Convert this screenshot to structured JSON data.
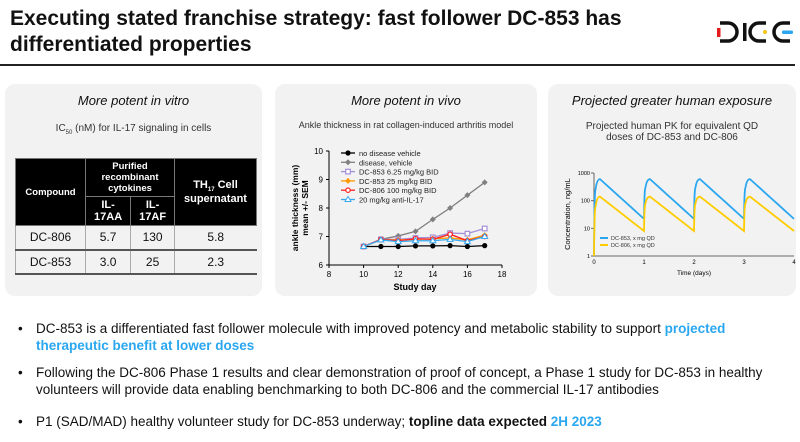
{
  "title": "Executing stated franchise strategy: fast follower DC-853 has differentiated properties",
  "logo": {
    "text": "DICE",
    "colors": [
      "#e41b1b",
      "#f5c518",
      "#2aa7f0"
    ]
  },
  "panels": [
    {
      "heading": "More potent in vitro",
      "subtitle_pre": "IC",
      "subtitle_sub": "50",
      "subtitle_post": " (nM) for IL-17 signaling in cells",
      "table": {
        "h_compound": "Compound",
        "h_group": "Purified recombinant cytokines",
        "h_aa": "IL-17AA",
        "h_af": "IL-17AF",
        "h_th_pre": "TH",
        "h_th_sub": "17",
        "h_th_post": " Cell supernatant",
        "rows": [
          [
            "DC-806",
            "5.7",
            "130",
            "5.8"
          ],
          [
            "DC-853",
            "3.0",
            "25",
            "2.3"
          ]
        ]
      }
    },
    {
      "heading": "More potent in vivo",
      "subtitle": "Ankle thickness in rat collagen-induced arthritis model"
    },
    {
      "heading": "Projected greater human exposure",
      "subtitle": "Projected human PK for equivalent QD doses of DC-853 and DC-806"
    }
  ],
  "chart_data": [
    {
      "type": "line",
      "xlabel": "Study day",
      "ylabel": "ankle thickness (mm) mean +/- SEM",
      "xlim": [
        8,
        18
      ],
      "ylim": [
        6,
        10
      ],
      "xticks": [
        "8",
        "10",
        "12",
        "14",
        "16",
        "18"
      ],
      "yticks": [
        "6",
        "7",
        "8",
        "9",
        "10"
      ],
      "legend": "top-left",
      "x": [
        10,
        11,
        12,
        13,
        14,
        15,
        16,
        17
      ],
      "series": [
        {
          "name": "no disease vehicle",
          "color": "#000000",
          "marker": "circle",
          "values": [
            6.65,
            6.65,
            6.65,
            6.67,
            6.67,
            6.68,
            6.65,
            6.68
          ]
        },
        {
          "name": "disease, vehicle",
          "color": "#808080",
          "marker": "diamond",
          "values": [
            6.65,
            6.9,
            7.02,
            7.18,
            7.6,
            8.0,
            8.45,
            8.9
          ]
        },
        {
          "name": "DC-853 6.25 mg/kg BID",
          "color": "#a58fd6",
          "marker": "square",
          "values": [
            6.65,
            6.9,
            6.9,
            6.95,
            6.97,
            7.12,
            7.1,
            7.28
          ]
        },
        {
          "name": "DC-853 25 mg/kg BID",
          "color": "#ff9900",
          "marker": "diamond",
          "values": [
            6.65,
            6.88,
            6.88,
            6.9,
            6.92,
            6.95,
            6.88,
            7.05
          ]
        },
        {
          "name": "DC-806 100 mg/kg BID",
          "color": "#ff2020",
          "marker": "circle-open",
          "values": [
            6.65,
            6.9,
            6.85,
            6.92,
            6.9,
            7.08,
            6.85,
            7.0
          ]
        },
        {
          "name": "20 mg/kg anti-IL-17",
          "color": "#3aa8f0",
          "marker": "triangle",
          "values": [
            6.65,
            6.88,
            6.82,
            6.85,
            6.85,
            6.9,
            6.82,
            7.0
          ]
        }
      ]
    },
    {
      "type": "line",
      "xlabel": "Time (days)",
      "ylabel": "Concentration, ng/mL",
      "xlim": [
        0,
        4
      ],
      "ylim": [
        1,
        1000
      ],
      "yscale": "log",
      "xticks": [
        "0",
        "1",
        "2",
        "3",
        "4"
      ],
      "yticks": [
        "1",
        "10",
        "100",
        "1000"
      ],
      "legend": "bottom-left",
      "series": [
        {
          "name": "DC-853, x mg QD",
          "color": "#2aa7f0",
          "points": [
            [
              0,
              1
            ],
            [
              0.03,
              250
            ],
            [
              0.12,
              600
            ],
            [
              1,
              22
            ],
            [
              1.03,
              300
            ],
            [
              1.12,
              600
            ],
            [
              2,
              22
            ],
            [
              2.03,
              300
            ],
            [
              2.12,
              600
            ],
            [
              3,
              22
            ],
            [
              3.03,
              300
            ],
            [
              3.12,
              600
            ],
            [
              4,
              22
            ]
          ]
        },
        {
          "name": "DC-806, x mg QD",
          "color": "#ffcc00",
          "points": [
            [
              0,
              1
            ],
            [
              0.03,
              60
            ],
            [
              0.12,
              140
            ],
            [
              1,
              8
            ],
            [
              1.03,
              80
            ],
            [
              1.12,
              140
            ],
            [
              2,
              8
            ],
            [
              2.03,
              80
            ],
            [
              2.12,
              140
            ],
            [
              3,
              8
            ],
            [
              3.03,
              80
            ],
            [
              3.12,
              140
            ],
            [
              4,
              8
            ]
          ]
        }
      ]
    }
  ],
  "bullets": [
    {
      "text": "DC-853 is a differentiated fast follower molecule with improved potency and metabolic stability to support ",
      "hl": "projected therapeutic benefit at lower doses"
    },
    {
      "text": "Following the DC-806 Phase 1 results and clear demonstration of proof of concept, a Phase 1 study for DC-853 in healthy volunteers will provide data enabling benchmarking to both DC-806 and the commercial IL-17 antibodies"
    },
    {
      "text": "P1 (SAD/MAD) healthy volunteer study for DC-853 underway; ",
      "bold": "topline data expected ",
      "hl": "2H 2023"
    }
  ]
}
